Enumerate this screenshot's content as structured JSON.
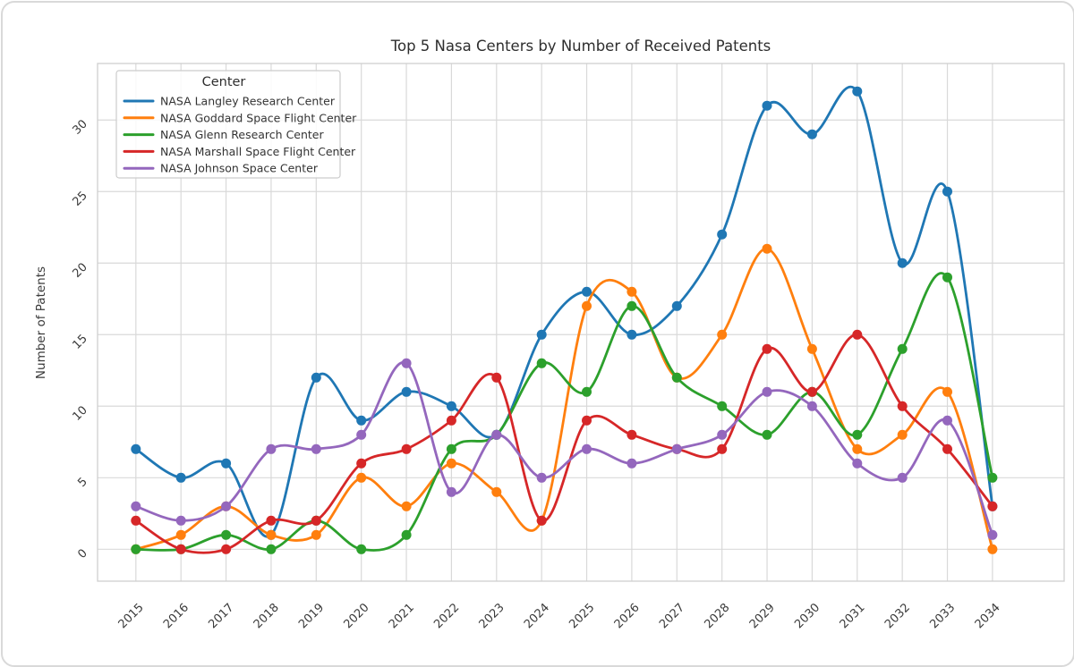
{
  "chart_data": {
    "type": "line",
    "title": "Top 5 Nasa Centers by Number of Received Patents",
    "xlabel": "",
    "ylabel": "Number of Patents",
    "legend_title": "Center",
    "legend_position": "upper left",
    "grid": true,
    "marker": "o",
    "x": [
      2015,
      2016,
      2017,
      2018,
      2019,
      2020,
      2021,
      2022,
      2023,
      2024,
      2025,
      2026,
      2027,
      2028,
      2029,
      2030,
      2031,
      2032,
      2033,
      2034
    ],
    "yticks": [
      0,
      5,
      10,
      15,
      20,
      25,
      30
    ],
    "xlim": [
      2014.15,
      2035.59
    ],
    "ylim": [
      -2.23,
      33.95
    ],
    "series": [
      {
        "name": "NASA Langley Research Center",
        "color": "#1f77b4",
        "values": [
          7,
          5,
          6,
          1,
          12,
          9,
          11,
          10,
          8,
          15,
          18,
          15,
          17,
          22,
          31,
          29,
          32,
          20,
          25,
          3
        ]
      },
      {
        "name": "NASA Goddard Space Flight Center",
        "color": "#ff7f0e",
        "values": [
          0,
          1,
          3,
          1,
          1,
          5,
          3,
          6,
          4,
          2,
          17,
          18,
          12,
          15,
          21,
          14,
          7,
          8,
          11,
          0
        ]
      },
      {
        "name": "NASA Glenn Research Center",
        "color": "#2ca02c",
        "values": [
          0,
          0,
          1,
          0,
          2,
          0,
          1,
          7,
          8,
          13,
          11,
          17,
          12,
          10,
          8,
          11,
          8,
          14,
          19,
          5
        ]
      },
      {
        "name": "NASA Marshall Space Flight Center",
        "color": "#d62728",
        "values": [
          2,
          0,
          0,
          2,
          2,
          6,
          7,
          9,
          12,
          2,
          9,
          8,
          7,
          7,
          14,
          11,
          15,
          10,
          7,
          3
        ]
      },
      {
        "name": "NASA Johnson Space Center",
        "color": "#9467bd",
        "values": [
          3,
          2,
          3,
          7,
          7,
          8,
          13,
          4,
          8,
          5,
          7,
          6,
          7,
          8,
          11,
          10,
          6,
          5,
          9,
          1
        ]
      }
    ]
  }
}
